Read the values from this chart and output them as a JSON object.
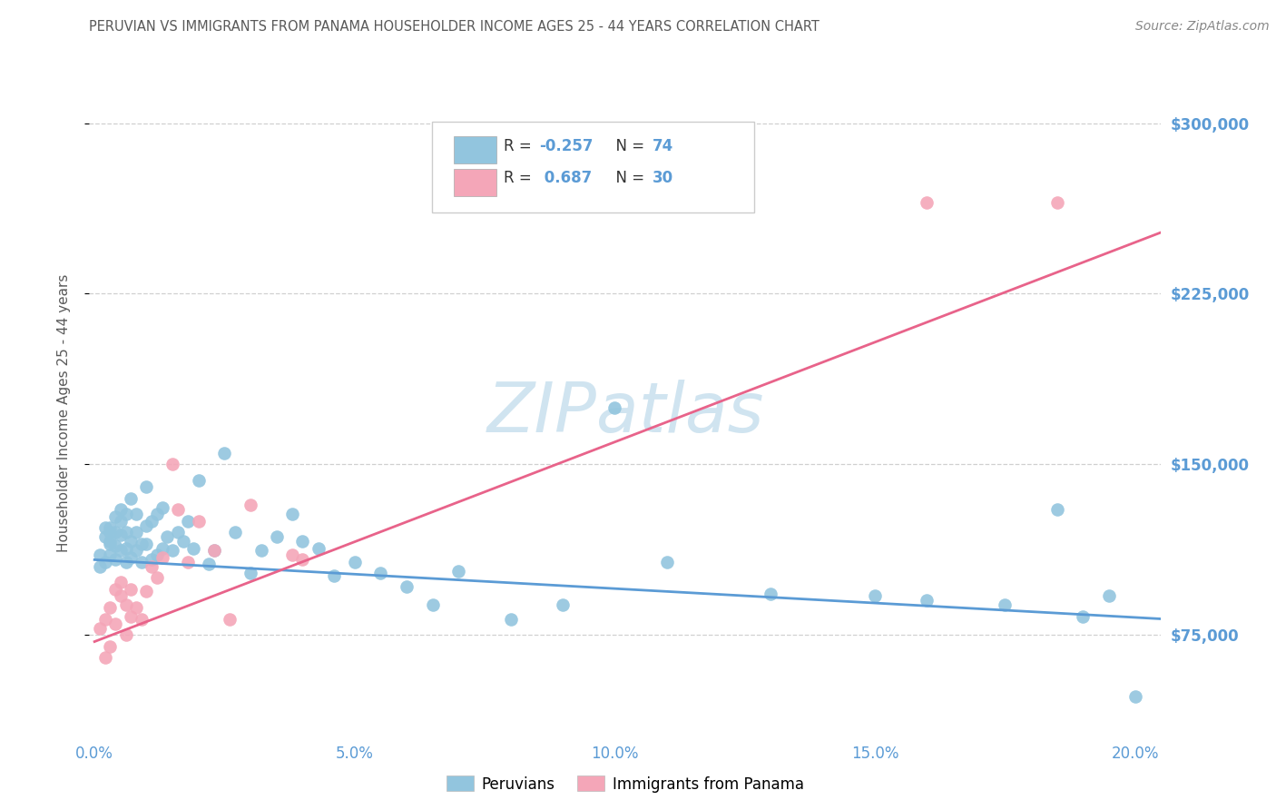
{
  "title": "PERUVIAN VS IMMIGRANTS FROM PANAMA HOUSEHOLDER INCOME AGES 25 - 44 YEARS CORRELATION CHART",
  "source": "Source: ZipAtlas.com",
  "ylabel": "Householder Income Ages 25 - 44 years",
  "yticks": [
    75000,
    150000,
    225000,
    300000
  ],
  "ytick_labels": [
    "$75,000",
    "$150,000",
    "$225,000",
    "$300,000"
  ],
  "ylim": [
    30000,
    315000
  ],
  "xlim": [
    -0.001,
    0.205
  ],
  "xlabel_vals": [
    0.0,
    0.05,
    0.1,
    0.15,
    0.2
  ],
  "xlabel_ticks": [
    "0.0%",
    "5.0%",
    "10.0%",
    "15.0%",
    "20.0%"
  ],
  "blue_color": "#92c5de",
  "pink_color": "#f4a6b8",
  "blue_line_color": "#5b9bd5",
  "pink_line_color": "#e8638a",
  "axis_label_color": "#5b9bd5",
  "title_color": "#595959",
  "source_color": "#888888",
  "grid_color": "#d0d0d0",
  "watermark": "ZIPatlas",
  "watermark_color": "#d0e4f0",
  "blue_r": "-0.257",
  "blue_n": "74",
  "pink_r": "0.687",
  "pink_n": "30",
  "blue_line_x": [
    0.0,
    0.205
  ],
  "blue_line_y": [
    108000,
    82000
  ],
  "pink_line_x": [
    0.0,
    0.205
  ],
  "pink_line_y": [
    72000,
    252000
  ],
  "blue_x": [
    0.001,
    0.001,
    0.002,
    0.002,
    0.002,
    0.003,
    0.003,
    0.003,
    0.003,
    0.003,
    0.004,
    0.004,
    0.004,
    0.004,
    0.005,
    0.005,
    0.005,
    0.005,
    0.006,
    0.006,
    0.006,
    0.006,
    0.007,
    0.007,
    0.007,
    0.008,
    0.008,
    0.008,
    0.009,
    0.009,
    0.01,
    0.01,
    0.01,
    0.011,
    0.011,
    0.012,
    0.012,
    0.013,
    0.013,
    0.014,
    0.015,
    0.016,
    0.017,
    0.018,
    0.019,
    0.02,
    0.022,
    0.023,
    0.025,
    0.027,
    0.03,
    0.032,
    0.035,
    0.038,
    0.04,
    0.043,
    0.046,
    0.05,
    0.055,
    0.06,
    0.065,
    0.07,
    0.08,
    0.09,
    0.1,
    0.11,
    0.13,
    0.15,
    0.16,
    0.175,
    0.185,
    0.19,
    0.195,
    0.2
  ],
  "blue_y": [
    110000,
    105000,
    118000,
    107000,
    122000,
    110000,
    116000,
    122000,
    115000,
    120000,
    108000,
    114000,
    120000,
    127000,
    112000,
    119000,
    125000,
    130000,
    107000,
    113000,
    120000,
    128000,
    109000,
    116000,
    135000,
    112000,
    120000,
    128000,
    107000,
    115000,
    115000,
    123000,
    140000,
    108000,
    125000,
    110000,
    128000,
    113000,
    131000,
    118000,
    112000,
    120000,
    116000,
    125000,
    113000,
    143000,
    106000,
    112000,
    155000,
    120000,
    102000,
    112000,
    118000,
    128000,
    116000,
    113000,
    101000,
    107000,
    102000,
    96000,
    88000,
    103000,
    82000,
    88000,
    175000,
    107000,
    93000,
    92000,
    90000,
    88000,
    130000,
    83000,
    92000,
    48000
  ],
  "pink_x": [
    0.001,
    0.002,
    0.002,
    0.003,
    0.003,
    0.004,
    0.004,
    0.005,
    0.005,
    0.006,
    0.006,
    0.007,
    0.007,
    0.008,
    0.009,
    0.01,
    0.011,
    0.012,
    0.013,
    0.015,
    0.016,
    0.018,
    0.02,
    0.023,
    0.026,
    0.03,
    0.038,
    0.04,
    0.16,
    0.185
  ],
  "pink_y": [
    78000,
    82000,
    65000,
    87000,
    70000,
    95000,
    80000,
    92000,
    98000,
    75000,
    88000,
    83000,
    95000,
    87000,
    82000,
    94000,
    105000,
    100000,
    109000,
    150000,
    130000,
    107000,
    125000,
    112000,
    82000,
    132000,
    110000,
    108000,
    265000,
    265000
  ]
}
